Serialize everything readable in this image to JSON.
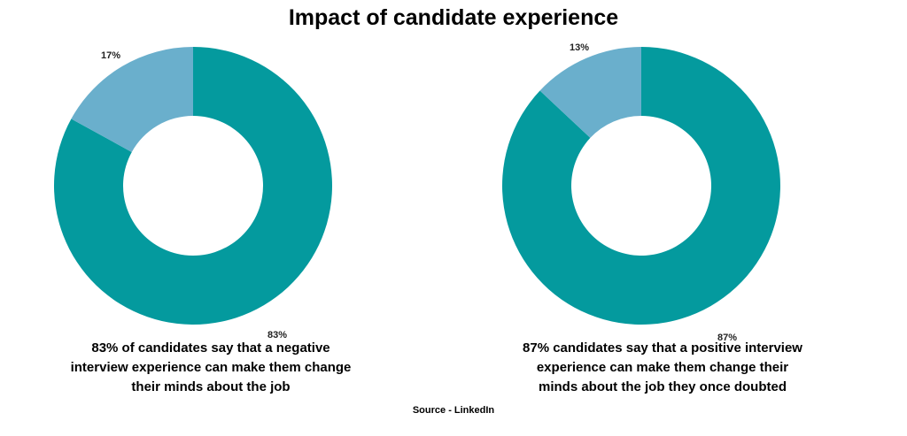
{
  "title": "Impact of candidate experience",
  "source": "Source - LinkedIn",
  "colors": {
    "major": "#049a9e",
    "minor": "#6aafcc"
  },
  "chart_data": [
    {
      "type": "pie",
      "slices": [
        {
          "label": "83%",
          "value": 83
        },
        {
          "label": "17%",
          "value": 17
        }
      ],
      "caption": "83% of candidates say that a negative interview experience can make them change their minds about the job"
    },
    {
      "type": "pie",
      "slices": [
        {
          "label": "87%",
          "value": 87
        },
        {
          "label": "13%",
          "value": 13
        }
      ],
      "caption": "87% candidates say that a positive interview experience can make them change their minds about the job they once doubted"
    }
  ]
}
